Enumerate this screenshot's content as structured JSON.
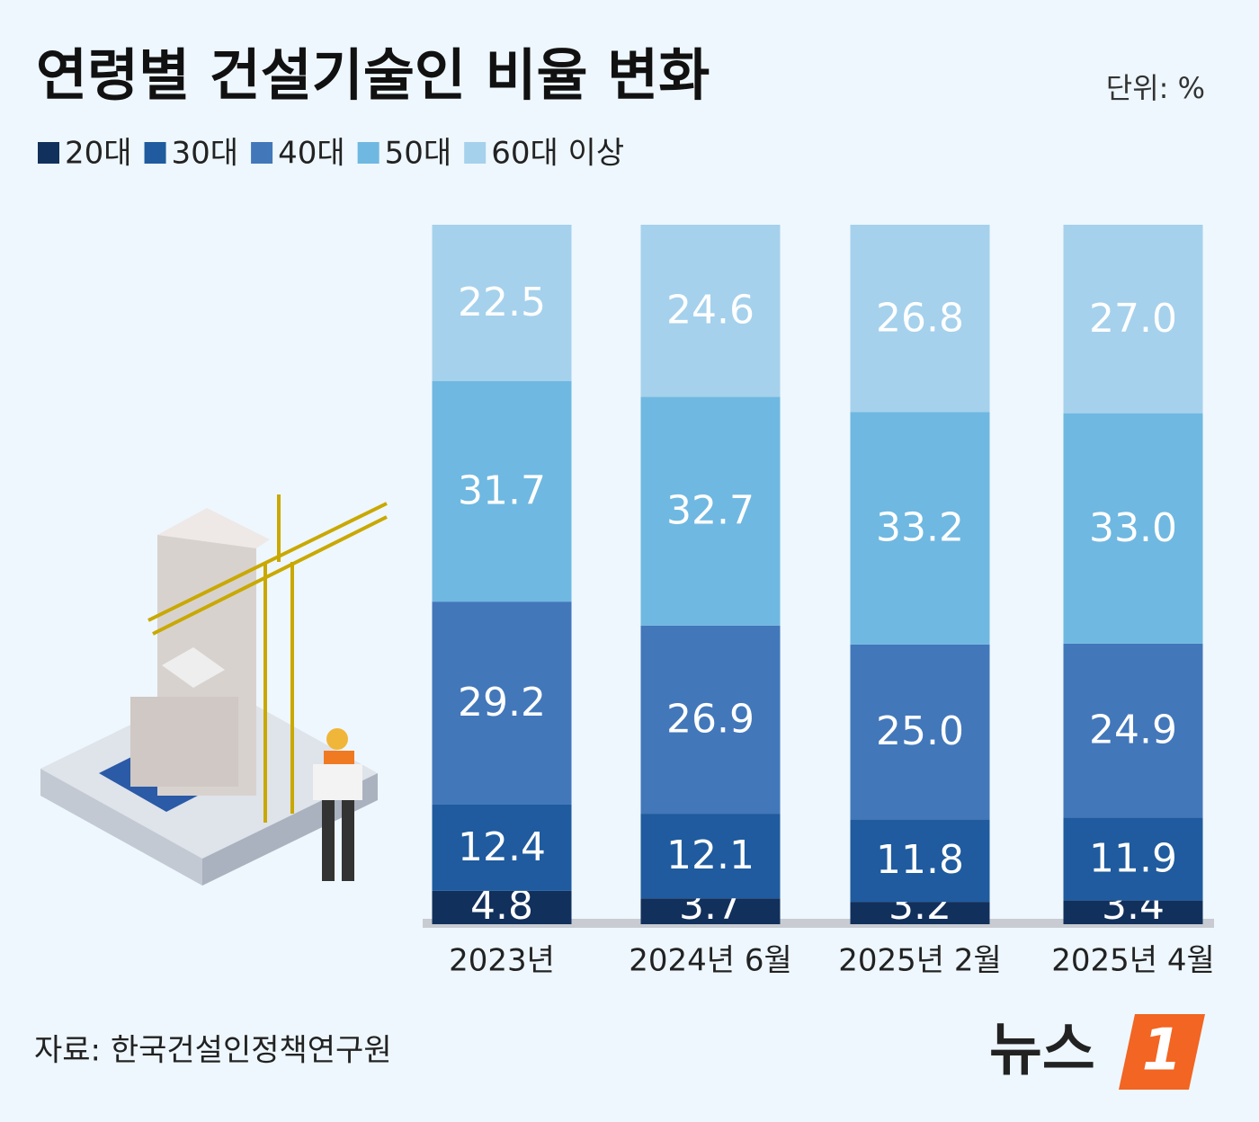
{
  "chart_data": {
    "type": "stacked-bar",
    "title": "연령별 건설기술인 비율 변화",
    "unit": "단위: %",
    "source": "자료: 한국건설인정책연구원",
    "logo": {
      "text": "뉴스",
      "mark": "1"
    },
    "categories": [
      "2023년",
      "2024년 6월",
      "2025년 2월",
      "2025년 4월"
    ],
    "series": [
      {
        "name": "20대",
        "color": "#12305c",
        "values": [
          4.8,
          3.7,
          3.2,
          3.4
        ],
        "value_labels": [
          "4.8",
          "3.7",
          "3.2",
          "3.4"
        ]
      },
      {
        "name": "30대",
        "color": "#1f5b9e",
        "values": [
          12.4,
          12.1,
          11.8,
          11.9
        ],
        "value_labels": [
          "12.4",
          "12.1",
          "11.8",
          "11.9"
        ]
      },
      {
        "name": "40대",
        "color": "#4277ba",
        "values": [
          29.2,
          26.9,
          25.0,
          24.9
        ],
        "value_labels": [
          "29.2",
          "26.9",
          "25.0",
          "24.9"
        ]
      },
      {
        "name": "50대",
        "color": "#6fb8e1",
        "values": [
          31.7,
          32.7,
          33.2,
          33.0
        ],
        "value_labels": [
          "31.7",
          "32.7",
          "33.2",
          "33.0"
        ]
      },
      {
        "name": "60대 이상",
        "color": "#a5d1ec",
        "values": [
          22.5,
          24.6,
          26.8,
          27.0
        ],
        "value_labels": [
          "22.5",
          "24.6",
          "26.8",
          "27.0"
        ]
      }
    ],
    "legend": "top-left"
  }
}
